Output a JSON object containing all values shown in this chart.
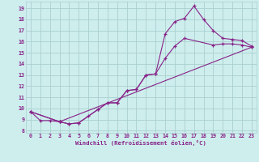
{
  "xlabel": "Windchill (Refroidissement éolien,°C)",
  "bg_color": "#cdeeed",
  "grid_color": "#aacfcf",
  "line_color": "#882288",
  "xlim": [
    -0.5,
    23.5
  ],
  "ylim": [
    7.8,
    19.6
  ],
  "yticks": [
    8,
    9,
    10,
    11,
    12,
    13,
    14,
    15,
    16,
    17,
    18,
    19
  ],
  "xticks": [
    0,
    1,
    2,
    3,
    4,
    5,
    6,
    7,
    8,
    9,
    10,
    11,
    12,
    13,
    14,
    15,
    16,
    17,
    18,
    19,
    20,
    21,
    22,
    23
  ],
  "line1_x": [
    0,
    1,
    2,
    3,
    4,
    5,
    6,
    7,
    8,
    9,
    10,
    11,
    12,
    13,
    14,
    15,
    16,
    17,
    18,
    19,
    20,
    21,
    22,
    23
  ],
  "line1_y": [
    9.7,
    8.9,
    8.9,
    8.8,
    8.6,
    8.7,
    9.3,
    9.9,
    10.5,
    10.5,
    11.6,
    11.7,
    13.0,
    13.1,
    16.7,
    17.8,
    18.1,
    19.2,
    18.0,
    17.0,
    16.3,
    16.2,
    16.1,
    15.6
  ],
  "line2_x": [
    0,
    3,
    4,
    5,
    7,
    8,
    9,
    10,
    11,
    12,
    13,
    14,
    15,
    16,
    19,
    20,
    21,
    22,
    23
  ],
  "line2_y": [
    9.7,
    8.8,
    8.6,
    8.7,
    9.9,
    10.5,
    10.5,
    11.6,
    11.7,
    13.0,
    13.1,
    14.5,
    15.6,
    16.3,
    15.7,
    15.8,
    15.8,
    15.7,
    15.5
  ],
  "line3_x": [
    0,
    3,
    23
  ],
  "line3_y": [
    9.7,
    8.8,
    15.5
  ]
}
